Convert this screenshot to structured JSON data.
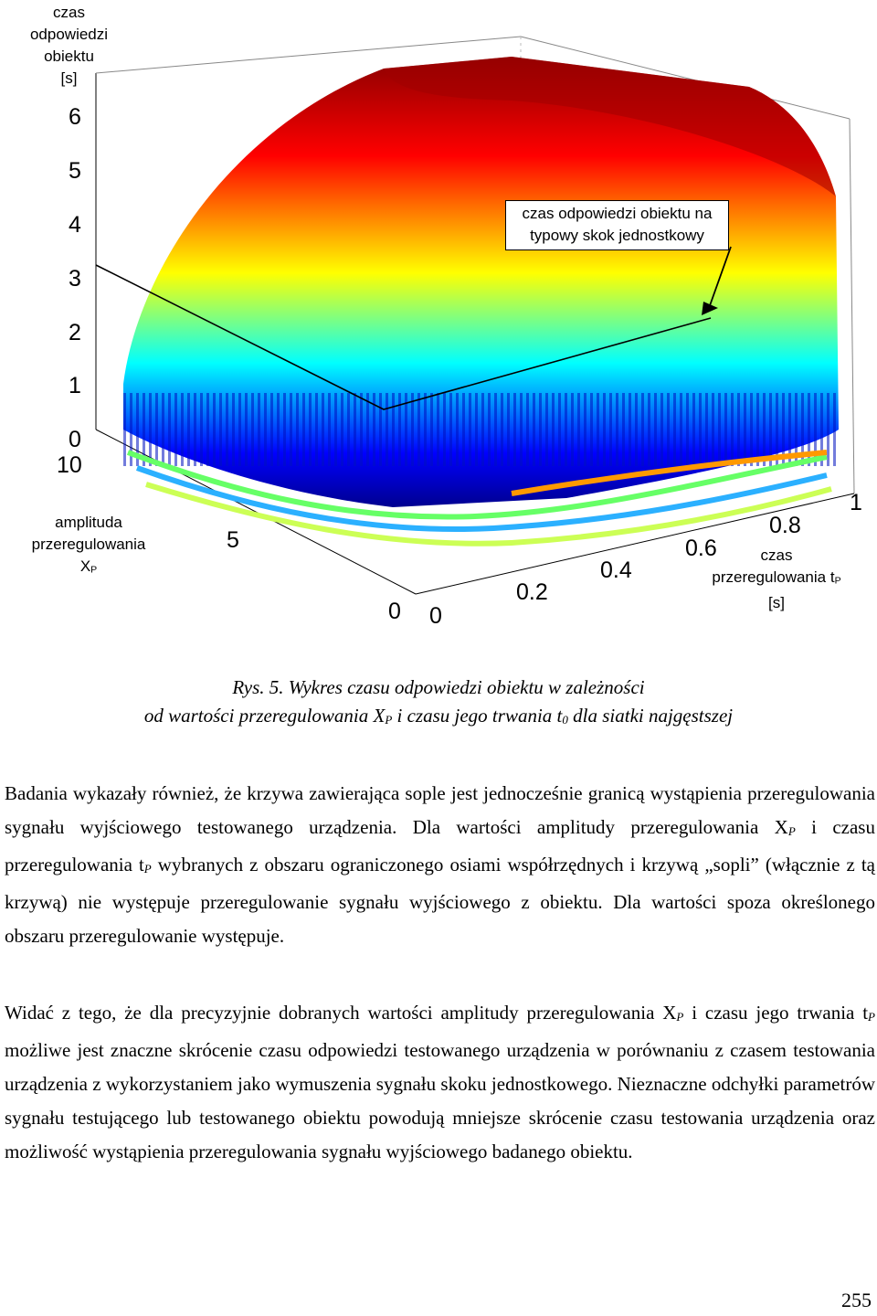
{
  "figure": {
    "z_axis_label": [
      "czas",
      "odpowiedzi",
      "obiektu",
      "[s]"
    ],
    "xp_axis_label": [
      "amplituda",
      "przeregulowania",
      "X",
      "P"
    ],
    "tp_axis_label": [
      "czas",
      "przeregulowania t",
      "P",
      "[s]"
    ],
    "annotation": [
      "czas odpowiedzi obiektu na",
      "typowy skok jednostkowy"
    ],
    "z_ticks": [
      "6",
      "5",
      "4",
      "3",
      "2",
      "1",
      "0"
    ],
    "xp_ticks": [
      "10",
      "5",
      "0"
    ],
    "tp_ticks": [
      "0",
      "0.2",
      "0.4",
      "0.6",
      "0.8",
      "1"
    ],
    "colormap": [
      "#00008f",
      "#0000ff",
      "#00ffff",
      "#ffff00",
      "#ff0000",
      "#800000"
    ]
  },
  "caption": {
    "line1": "Rys. 5. Wykres czasu odpowiedzi obiektu w zależności",
    "line2_a": "od wartości przeregulowania X",
    "line2_sub1": "P",
    "line2_b": " i czasu jego trwania t",
    "line2_sub2": "0",
    "line2_c": " dla siatki najgęstszej"
  },
  "paragraph1": {
    "a": "Badania wykazały również, że krzywa zawierająca sople jest jednocześnie granicą wystąpienia przeregulowania sygnału wyjściowego testowanego urządzenia. Dla wartości amplitudy przeregulowania X",
    "sub1": "P",
    "b": " i czasu przeregulowania t",
    "sub2": "P",
    "c": " wybranych z obszaru ograniczonego osiami współrzędnych i krzywą „sopli” (włącznie z tą krzywą) nie występuje przeregulowanie sygnału wyjściowego z obiektu. Dla wartości spoza określonego obszaru przeregulowanie występuje."
  },
  "paragraph2": {
    "a": "Widać z tego, że dla precyzyjnie dobranych wartości amplitudy przeregulowania X",
    "sub1": "P",
    "b": " i czasu jego trwania t",
    "sub2": "P",
    "c": " możliwe jest znaczne skrócenie czasu odpowiedzi testowanego urządzenia w porównaniu z czasem testowania urządzenia z wykorzystaniem jako wymuszenia sygnału skoku jednostkowego. Nieznaczne odchyłki parametrów sygnału testującego lub testowanego obiektu powodują mniejsze skrócenie czasu testowania urządzenia oraz możliwość wystąpienia przeregulowania sygnału wyjściowego badanego obiektu."
  },
  "page_number": "255"
}
